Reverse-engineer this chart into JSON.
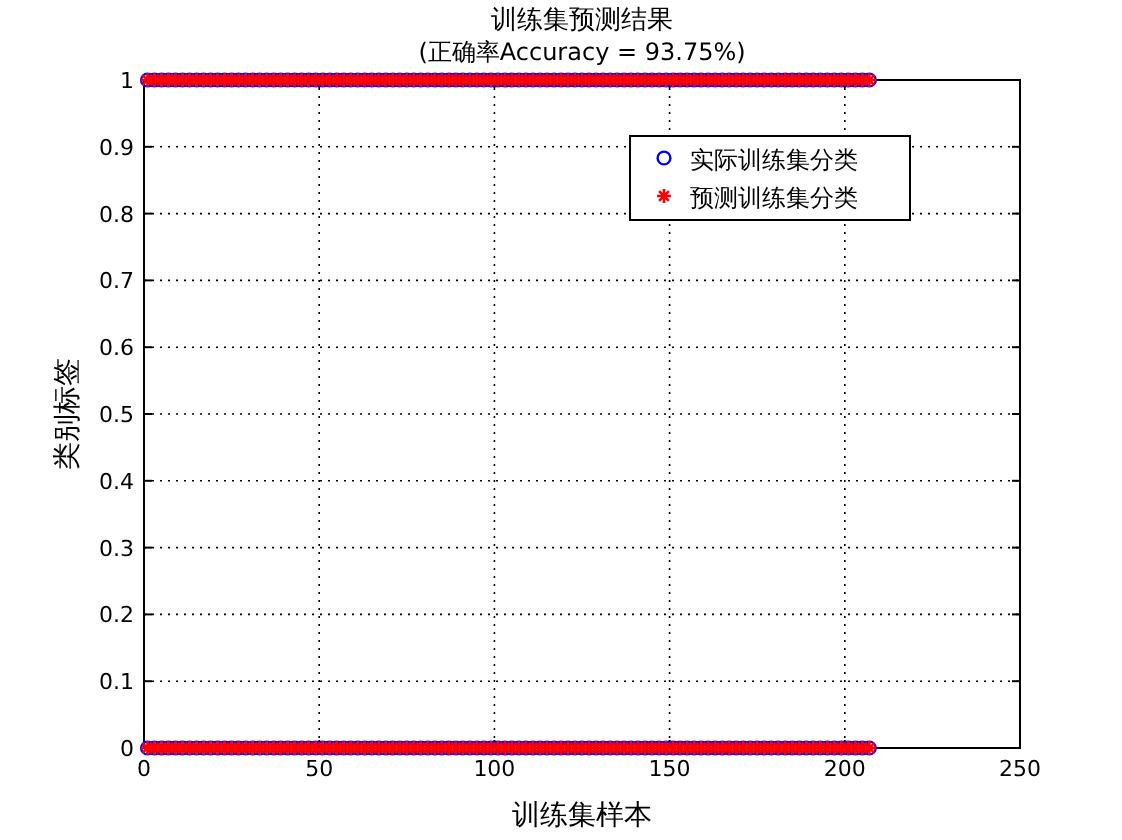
{
  "chart_data": {
    "type": "scatter",
    "title": "训练集预测结果",
    "subtitle": "(正确率Accuracy = 93.75%)",
    "xlabel": "训练集样本",
    "ylabel": "类别标签",
    "xlim": [
      0,
      250
    ],
    "xticks": [
      0,
      50,
      100,
      150,
      200,
      250
    ],
    "ylim": [
      0,
      1
    ],
    "yticks": [
      0,
      0.1,
      0.2,
      0.3,
      0.4,
      0.5,
      0.6,
      0.7,
      0.8,
      0.9,
      1
    ],
    "grid": true,
    "legend": "top right",
    "series": [
      {
        "name": "实际训练集分类",
        "color": "#0000ff",
        "marker": "circle",
        "x": [
          1,
          3,
          5,
          7,
          9,
          11,
          13,
          15,
          17,
          19,
          21,
          23,
          25,
          27,
          29,
          31,
          33,
          35,
          37,
          39,
          41,
          43,
          45,
          47,
          49,
          51,
          53,
          55,
          57,
          59,
          61,
          63,
          65,
          67,
          69,
          71,
          73,
          75,
          77,
          79,
          81,
          83,
          85,
          87,
          89,
          91,
          93,
          95,
          97,
          99,
          101,
          103,
          105,
          107,
          109,
          111,
          113,
          115,
          117,
          119,
          121,
          123,
          125,
          127,
          129,
          131,
          133,
          135,
          137,
          139,
          141,
          143,
          145,
          147,
          149,
          151,
          153,
          155,
          157,
          159,
          161,
          163,
          165,
          167,
          169,
          171,
          173,
          175,
          177,
          179,
          181,
          183,
          185,
          187,
          189,
          191,
          193,
          195,
          197,
          199,
          201,
          203,
          205,
          207,
          1,
          3,
          5,
          7,
          9,
          11,
          13,
          15,
          17,
          19,
          21,
          23,
          25,
          27,
          29,
          31,
          33,
          35,
          37,
          39,
          41,
          43,
          45,
          47,
          49,
          51,
          53,
          55,
          57,
          59,
          61,
          63,
          65,
          67,
          69,
          71,
          73,
          75,
          77,
          79,
          81,
          83,
          85,
          87,
          89,
          91,
          93,
          95,
          97,
          99,
          101,
          103,
          105,
          107,
          109,
          111,
          113,
          115,
          117,
          119,
          121,
          123,
          125,
          127,
          129,
          131,
          133,
          135,
          137,
          139,
          141,
          143,
          145,
          147,
          149,
          151,
          153,
          155,
          157,
          159,
          161,
          163,
          165,
          167,
          169,
          171,
          173,
          175,
          177,
          179,
          181,
          183,
          185,
          187,
          189,
          191,
          193,
          195,
          197,
          199,
          201,
          203,
          205,
          207
        ],
        "values": [
          1,
          1,
          1,
          1,
          1,
          1,
          1,
          1,
          1,
          1,
          1,
          1,
          1,
          1,
          1,
          1,
          1,
          1,
          1,
          1,
          1,
          1,
          1,
          1,
          1,
          1,
          1,
          1,
          1,
          1,
          1,
          1,
          1,
          1,
          1,
          1,
          1,
          1,
          1,
          1,
          1,
          1,
          1,
          1,
          1,
          1,
          1,
          1,
          1,
          1,
          1,
          1,
          1,
          1,
          1,
          1,
          1,
          1,
          1,
          1,
          1,
          1,
          1,
          1,
          1,
          1,
          1,
          1,
          1,
          1,
          1,
          1,
          1,
          1,
          1,
          1,
          1,
          1,
          1,
          1,
          1,
          1,
          1,
          1,
          1,
          1,
          1,
          1,
          1,
          1,
          1,
          1,
          1,
          1,
          1,
          1,
          1,
          1,
          1,
          1,
          1,
          1,
          1,
          1,
          0,
          0,
          0,
          0,
          0,
          0,
          0,
          0,
          0,
          0,
          0,
          0,
          0,
          0,
          0,
          0,
          0,
          0,
          0,
          0,
          0,
          0,
          0,
          0,
          0,
          0,
          0,
          0,
          0,
          0,
          0,
          0,
          0,
          0,
          0,
          0,
          0,
          0,
          0,
          0,
          0,
          0,
          0,
          0,
          0,
          0,
          0,
          0,
          0,
          0,
          0,
          0,
          0,
          0,
          0,
          0,
          0,
          0,
          0,
          0,
          0,
          0,
          0,
          0,
          0,
          0,
          0,
          0,
          0,
          0,
          0,
          0,
          0,
          0,
          0,
          0,
          0,
          0,
          0,
          0,
          0,
          0,
          0,
          0,
          0,
          0,
          0,
          0,
          0,
          0,
          0,
          0,
          0,
          0,
          0,
          0,
          0,
          0,
          0,
          0,
          0,
          0,
          0,
          0
        ]
      },
      {
        "name": "预测训练集分类",
        "color": "#ff0000",
        "marker": "cross",
        "x": [
          1,
          3,
          5,
          7,
          9,
          11,
          13,
          15,
          17,
          19,
          21,
          23,
          25,
          27,
          29,
          31,
          33,
          35,
          37,
          39,
          41,
          43,
          45,
          47,
          49,
          51,
          53,
          55,
          57,
          59,
          61,
          63,
          65,
          67,
          69,
          71,
          73,
          75,
          77,
          79,
          81,
          83,
          85,
          87,
          89,
          91,
          93,
          95,
          97,
          99,
          101,
          103,
          105,
          107,
          109,
          111,
          113,
          115,
          117,
          119,
          121,
          123,
          125,
          127,
          129,
          131,
          133,
          135,
          137,
          139,
          141,
          143,
          145,
          147,
          149,
          151,
          153,
          155,
          157,
          159,
          161,
          163,
          165,
          167,
          169,
          171,
          173,
          175,
          177,
          179,
          181,
          183,
          185,
          187,
          189,
          191,
          193,
          195,
          197,
          199,
          201,
          203,
          205,
          207,
          1,
          3,
          5,
          7,
          9,
          11,
          13,
          15,
          17,
          19,
          21,
          23,
          25,
          27,
          29,
          31,
          33,
          35,
          37,
          39,
          41,
          43,
          45,
          47,
          49,
          51,
          53,
          55,
          57,
          59,
          61,
          63,
          65,
          67,
          69,
          71,
          73,
          75,
          77,
          79,
          81,
          83,
          85,
          87,
          89,
          91,
          93,
          95,
          97,
          99,
          101,
          103,
          105,
          107,
          109,
          111,
          113,
          115,
          117,
          119,
          121,
          123,
          125,
          127,
          129,
          131,
          133,
          135,
          137,
          139,
          141,
          143,
          145,
          147,
          149,
          151,
          153,
          155,
          157,
          159,
          161,
          163,
          165,
          167,
          169,
          171,
          173,
          175,
          177,
          179,
          181,
          183,
          185,
          187,
          189,
          191,
          193,
          195,
          197,
          199,
          201,
          203,
          205,
          207
        ],
        "values": [
          1,
          1,
          1,
          1,
          1,
          1,
          1,
          1,
          1,
          1,
          1,
          1,
          1,
          1,
          1,
          1,
          1,
          1,
          1,
          1,
          1,
          1,
          1,
          1,
          1,
          1,
          1,
          1,
          1,
          1,
          1,
          1,
          1,
          1,
          1,
          1,
          1,
          1,
          1,
          1,
          1,
          1,
          1,
          1,
          1,
          1,
          1,
          1,
          1,
          1,
          1,
          1,
          1,
          1,
          1,
          1,
          1,
          1,
          1,
          1,
          1,
          1,
          1,
          1,
          1,
          1,
          1,
          1,
          1,
          1,
          1,
          1,
          1,
          1,
          1,
          1,
          1,
          1,
          1,
          1,
          1,
          1,
          1,
          1,
          1,
          1,
          1,
          1,
          1,
          1,
          1,
          1,
          1,
          1,
          1,
          1,
          1,
          1,
          1,
          1,
          1,
          1,
          1,
          1,
          0,
          0,
          0,
          0,
          0,
          0,
          0,
          0,
          0,
          0,
          0,
          0,
          0,
          0,
          0,
          0,
          0,
          0,
          0,
          0,
          0,
          0,
          0,
          0,
          0,
          0,
          0,
          0,
          0,
          0,
          0,
          0,
          0,
          0,
          0,
          0,
          0,
          0,
          0,
          0,
          0,
          0,
          0,
          0,
          0,
          0,
          0,
          0,
          0,
          0,
          0,
          0,
          0,
          0,
          0,
          0,
          0,
          0,
          0,
          0,
          0,
          0,
          0,
          0,
          0,
          0,
          0,
          0,
          0,
          0,
          0,
          0,
          0,
          0,
          0,
          0,
          0,
          0,
          0,
          0,
          0,
          0,
          0,
          0,
          0,
          0,
          0,
          0,
          0,
          0,
          0,
          0,
          0,
          0,
          0,
          0,
          0,
          0,
          0,
          0,
          0,
          0,
          0,
          0
        ]
      }
    ]
  }
}
